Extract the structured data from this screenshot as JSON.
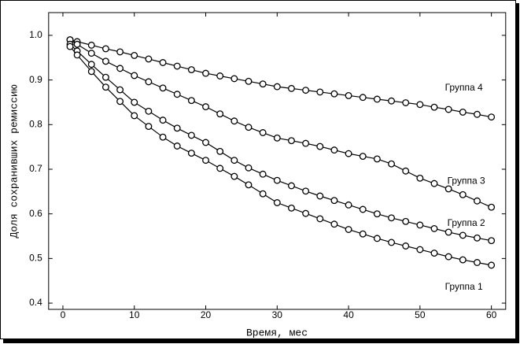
{
  "chart_data": {
    "type": "line",
    "xlabel": "Время, мес",
    "ylabel": "Доля сохранивших ремиссию",
    "x": [
      1,
      2,
      4,
      6,
      8,
      10,
      12,
      14,
      16,
      18,
      20,
      22,
      24,
      26,
      28,
      30,
      32,
      34,
      36,
      38,
      40,
      42,
      44,
      46,
      48,
      50,
      52,
      54,
      56,
      58,
      60
    ],
    "series": [
      {
        "name": "Группа 4",
        "color": "#000000",
        "values": [
          0.99,
          0.986,
          0.978,
          0.97,
          0.963,
          0.955,
          0.947,
          0.939,
          0.931,
          0.923,
          0.915,
          0.909,
          0.903,
          0.897,
          0.891,
          0.885,
          0.881,
          0.877,
          0.873,
          0.869,
          0.865,
          0.861,
          0.857,
          0.853,
          0.849,
          0.845,
          0.839,
          0.834,
          0.828,
          0.823,
          0.817
        ]
      },
      {
        "name": "Группа 3",
        "color": "#000000",
        "values": [
          0.99,
          0.98,
          0.96,
          0.942,
          0.926,
          0.91,
          0.896,
          0.882,
          0.868,
          0.854,
          0.84,
          0.824,
          0.808,
          0.794,
          0.782,
          0.77,
          0.764,
          0.758,
          0.751,
          0.743,
          0.735,
          0.729,
          0.723,
          0.712,
          0.696,
          0.68,
          0.668,
          0.656,
          0.643,
          0.629,
          0.615
        ]
      },
      {
        "name": "Группа 2",
        "color": "#000000",
        "values": [
          0.98,
          0.965,
          0.935,
          0.906,
          0.878,
          0.85,
          0.83,
          0.81,
          0.792,
          0.776,
          0.76,
          0.74,
          0.72,
          0.703,
          0.689,
          0.675,
          0.663,
          0.651,
          0.64,
          0.63,
          0.62,
          0.61,
          0.6,
          0.591,
          0.583,
          0.575,
          0.567,
          0.559,
          0.552,
          0.546,
          0.54
        ]
      },
      {
        "name": "Группа 1",
        "color": "#000000",
        "values": [
          0.975,
          0.956,
          0.919,
          0.884,
          0.852,
          0.82,
          0.796,
          0.772,
          0.752,
          0.736,
          0.72,
          0.702,
          0.684,
          0.665,
          0.645,
          0.625,
          0.613,
          0.601,
          0.589,
          0.577,
          0.565,
          0.555,
          0.545,
          0.536,
          0.528,
          0.52,
          0.512,
          0.504,
          0.497,
          0.491,
          0.485
        ]
      }
    ],
    "xlim": [
      -2,
      62
    ],
    "xticks": [
      0,
      10,
      20,
      30,
      40,
      50,
      60
    ],
    "ylim": [
      0.386,
      1.051
    ],
    "yticks": [
      0.4,
      0.5,
      0.6,
      0.7,
      0.8,
      0.9,
      {
        "value": 1.0,
        "label": "1.0"
      }
    ]
  }
}
